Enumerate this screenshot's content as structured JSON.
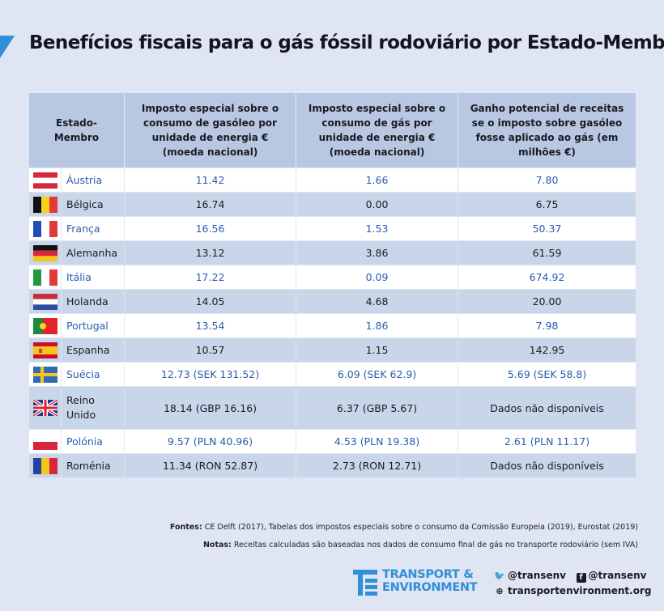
{
  "title": "Benefícios fiscais para o gás fóssil rodoviário por Estado-Membro",
  "table": {
    "headers": [
      "Estado-Membro",
      "Imposto especial sobre o consumo de gasóleo por unidade de energia € (moeda nacional)",
      "Imposto especial sobre o consumo de gás por unidade de energia € (moeda nacional)",
      "Ganho potencial de receitas se o imposto sobre gasóleo fosse aplicado ao gás (em milhões €)"
    ],
    "rows": [
      {
        "country": "Áustria",
        "flag": "austria-flag-icon",
        "diesel": "11.42",
        "gas": "1.66",
        "gain": "7.80"
      },
      {
        "country": "Bélgica",
        "flag": "belgium-flag-icon",
        "diesel": "16.74",
        "gas": "0.00",
        "gain": "6.75"
      },
      {
        "country": "França",
        "flag": "france-flag-icon",
        "diesel": "16.56",
        "gas": "1.53",
        "gain": "50.37"
      },
      {
        "country": "Alemanha",
        "flag": "germany-flag-icon",
        "diesel": "13.12",
        "gas": "3.86",
        "gain": "61.59"
      },
      {
        "country": "Itália",
        "flag": "italy-flag-icon",
        "diesel": "17.22",
        "gas": "0.09",
        "gain": "674.92"
      },
      {
        "country": "Holanda",
        "flag": "netherlands-flag-icon",
        "diesel": "14.05",
        "gas": "4.68",
        "gain": "20.00"
      },
      {
        "country": "Portugal",
        "flag": "portugal-flag-icon",
        "diesel": "13.54",
        "gas": "1.86",
        "gain": "7.98"
      },
      {
        "country": "Espanha",
        "flag": "spain-flag-icon",
        "diesel": "10.57",
        "gas": "1.15",
        "gain": "142.95"
      },
      {
        "country": "Suécia",
        "flag": "sweden-flag-icon",
        "diesel": "12.73 (SEK 131.52)",
        "gas": "6.09 (SEK 62.9)",
        "gain": "5.69 (SEK 58.8)"
      },
      {
        "country": "Reino Unido",
        "flag": "uk-flag-icon",
        "diesel": "18.14 (GBP 16.16)",
        "gas": "6.37 (GBP 5.67)",
        "gain": "Dados não disponíveis"
      },
      {
        "country": "Polónia",
        "flag": "poland-flag-icon",
        "diesel": "9.57 (PLN 40.96)",
        "gas": "4.53 (PLN 19.38)",
        "gain": "2.61 (PLN 11.17)"
      },
      {
        "country": "Roménia",
        "flag": "romania-flag-icon",
        "diesel": "11.34 (RON 52.87)",
        "gas": "2.73 (RON 12.71)",
        "gain": "Dados não disponíveis"
      }
    ]
  },
  "footer": {
    "sources_label": "Fontes:",
    "sources_text": " CE Delft (2017), Tabelas dos impostos especiais sobre o consumo da Comissão Europeia (2019), Eurostat (2019)",
    "notes_label": "Notas:",
    "notes_text": " Receitas calculadas são baseadas nos dados de consumo final de gás no transporte rodoviário (sem IVA)"
  },
  "logo": {
    "line1": "TRANSPORT &",
    "line2": "ENVIRONMENT",
    "icon": "te-logo-icon"
  },
  "social": {
    "twitter": "@transenv",
    "facebook": "@transenv",
    "website": "transportenvironment.org"
  },
  "colors": {
    "background": "#dfe5f2",
    "header_bg": "#b8c8e2",
    "row_light": "#ffffff",
    "row_dark": "#c9d6ea",
    "accent_blue": "#2f8fd8",
    "link_blue": "#2b5bb0"
  }
}
